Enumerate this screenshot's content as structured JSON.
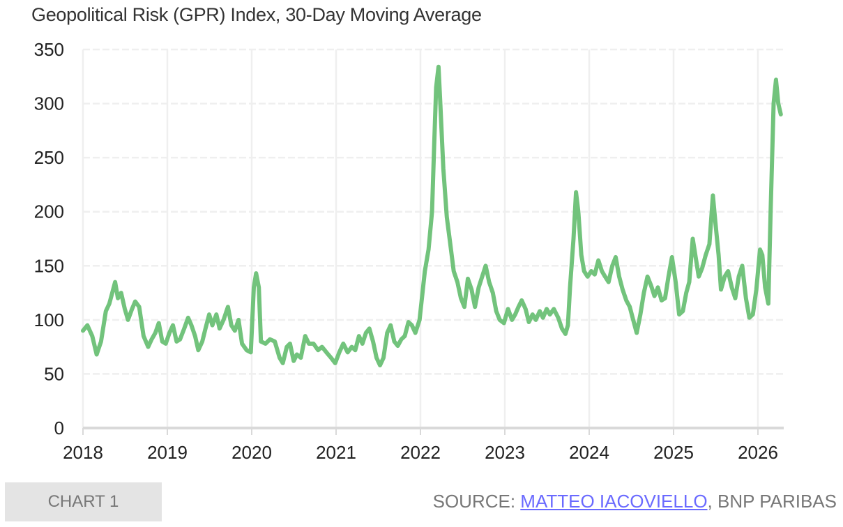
{
  "chart_data": {
    "type": "line",
    "title": "Geopolitical Risk (GPR) Index, 30-Day Moving Average",
    "xlabel": "",
    "ylabel": "",
    "ylim": [
      0,
      350
    ],
    "yticks": [
      "0",
      "50",
      "100",
      "150",
      "200",
      "250",
      "300",
      "350"
    ],
    "xticks": [
      "2018",
      "2019",
      "2020",
      "2021",
      "2022",
      "2023",
      "2024",
      "2025",
      "2026"
    ],
    "xlim": [
      "2018-01-01",
      "2026-04-15"
    ],
    "grid": true,
    "line_color": "#72c37c",
    "series": [
      {
        "points": [
          [
            "2018-01-01",
            90
          ],
          [
            "2018-01-20",
            95
          ],
          [
            "2018-02-10",
            85
          ],
          [
            "2018-03-01",
            68
          ],
          [
            "2018-03-20",
            80
          ],
          [
            "2018-04-10",
            108
          ],
          [
            "2018-04-25",
            115
          ],
          [
            "2018-05-10",
            127
          ],
          [
            "2018-05-20",
            135
          ],
          [
            "2018-06-01",
            120
          ],
          [
            "2018-06-15",
            125
          ],
          [
            "2018-07-01",
            110
          ],
          [
            "2018-07-15",
            100
          ],
          [
            "2018-08-01",
            110
          ],
          [
            "2018-08-15",
            117
          ],
          [
            "2018-09-01",
            112
          ],
          [
            "2018-09-20",
            85
          ],
          [
            "2018-10-10",
            75
          ],
          [
            "2018-10-25",
            82
          ],
          [
            "2018-11-10",
            88
          ],
          [
            "2018-11-25",
            97
          ],
          [
            "2018-12-10",
            80
          ],
          [
            "2018-12-25",
            78
          ],
          [
            "2019-01-10",
            88
          ],
          [
            "2019-01-25",
            95
          ],
          [
            "2019-02-10",
            80
          ],
          [
            "2019-02-25",
            82
          ],
          [
            "2019-03-15",
            92
          ],
          [
            "2019-04-01",
            102
          ],
          [
            "2019-04-15",
            95
          ],
          [
            "2019-05-01",
            85
          ],
          [
            "2019-05-15",
            72
          ],
          [
            "2019-06-01",
            80
          ],
          [
            "2019-06-15",
            92
          ],
          [
            "2019-07-01",
            105
          ],
          [
            "2019-07-15",
            95
          ],
          [
            "2019-08-01",
            105
          ],
          [
            "2019-08-15",
            92
          ],
          [
            "2019-09-01",
            100
          ],
          [
            "2019-09-20",
            112
          ],
          [
            "2019-10-05",
            95
          ],
          [
            "2019-10-20",
            90
          ],
          [
            "2019-11-05",
            100
          ],
          [
            "2019-11-20",
            78
          ],
          [
            "2019-12-10",
            72
          ],
          [
            "2019-12-28",
            70
          ],
          [
            "2020-01-10",
            130
          ],
          [
            "2020-01-20",
            143
          ],
          [
            "2020-02-01",
            130
          ],
          [
            "2020-02-10",
            80
          ],
          [
            "2020-03-01",
            78
          ],
          [
            "2020-03-20",
            82
          ],
          [
            "2020-04-10",
            80
          ],
          [
            "2020-05-01",
            65
          ],
          [
            "2020-05-15",
            60
          ],
          [
            "2020-06-01",
            75
          ],
          [
            "2020-06-15",
            78
          ],
          [
            "2020-07-01",
            62
          ],
          [
            "2020-07-15",
            68
          ],
          [
            "2020-08-01",
            65
          ],
          [
            "2020-08-20",
            85
          ],
          [
            "2020-09-05",
            78
          ],
          [
            "2020-09-25",
            78
          ],
          [
            "2020-10-15",
            72
          ],
          [
            "2020-11-01",
            75
          ],
          [
            "2020-11-20",
            70
          ],
          [
            "2020-12-10",
            65
          ],
          [
            "2020-12-28",
            60
          ],
          [
            "2021-01-15",
            70
          ],
          [
            "2021-02-01",
            78
          ],
          [
            "2021-02-20",
            70
          ],
          [
            "2021-03-10",
            75
          ],
          [
            "2021-03-25",
            72
          ],
          [
            "2021-04-10",
            85
          ],
          [
            "2021-04-25",
            78
          ],
          [
            "2021-05-10",
            88
          ],
          [
            "2021-05-25",
            92
          ],
          [
            "2021-06-10",
            80
          ],
          [
            "2021-06-25",
            65
          ],
          [
            "2021-07-10",
            58
          ],
          [
            "2021-07-25",
            65
          ],
          [
            "2021-08-10",
            88
          ],
          [
            "2021-08-25",
            95
          ],
          [
            "2021-09-10",
            80
          ],
          [
            "2021-09-25",
            76
          ],
          [
            "2021-10-10",
            82
          ],
          [
            "2021-10-25",
            85
          ],
          [
            "2021-11-10",
            98
          ],
          [
            "2021-11-25",
            95
          ],
          [
            "2021-12-10",
            88
          ],
          [
            "2021-12-28",
            100
          ],
          [
            "2022-01-20",
            145
          ],
          [
            "2022-02-05",
            165
          ],
          [
            "2022-02-20",
            200
          ],
          [
            "2022-03-01",
            260
          ],
          [
            "2022-03-10",
            315
          ],
          [
            "2022-03-20",
            334
          ],
          [
            "2022-03-28",
            300
          ],
          [
            "2022-04-10",
            240
          ],
          [
            "2022-04-25",
            195
          ],
          [
            "2022-05-10",
            170
          ],
          [
            "2022-05-25",
            145
          ],
          [
            "2022-06-10",
            135
          ],
          [
            "2022-06-25",
            120
          ],
          [
            "2022-07-10",
            112
          ],
          [
            "2022-07-25",
            138
          ],
          [
            "2022-08-10",
            128
          ],
          [
            "2022-08-25",
            112
          ],
          [
            "2022-09-10",
            130
          ],
          [
            "2022-09-25",
            140
          ],
          [
            "2022-10-10",
            150
          ],
          [
            "2022-10-25",
            135
          ],
          [
            "2022-11-10",
            125
          ],
          [
            "2022-11-25",
            108
          ],
          [
            "2022-12-10",
            100
          ],
          [
            "2022-12-28",
            97
          ],
          [
            "2023-01-15",
            110
          ],
          [
            "2023-02-01",
            100
          ],
          [
            "2023-02-15",
            105
          ],
          [
            "2023-03-01",
            112
          ],
          [
            "2023-03-15",
            118
          ],
          [
            "2023-04-01",
            110
          ],
          [
            "2023-04-15",
            98
          ],
          [
            "2023-05-01",
            105
          ],
          [
            "2023-05-15",
            100
          ],
          [
            "2023-06-01",
            108
          ],
          [
            "2023-06-15",
            102
          ],
          [
            "2023-07-01",
            110
          ],
          [
            "2023-07-15",
            105
          ],
          [
            "2023-08-01",
            110
          ],
          [
            "2023-08-20",
            102
          ],
          [
            "2023-09-05",
            92
          ],
          [
            "2023-09-20",
            87
          ],
          [
            "2023-10-01",
            95
          ],
          [
            "2023-10-10",
            130
          ],
          [
            "2023-10-25",
            175
          ],
          [
            "2023-11-05",
            218
          ],
          [
            "2023-11-15",
            200
          ],
          [
            "2023-11-28",
            160
          ],
          [
            "2023-12-10",
            145
          ],
          [
            "2023-12-25",
            140
          ],
          [
            "2024-01-10",
            145
          ],
          [
            "2024-01-25",
            142
          ],
          [
            "2024-02-10",
            155
          ],
          [
            "2024-02-25",
            145
          ],
          [
            "2024-03-10",
            140
          ],
          [
            "2024-03-25",
            135
          ],
          [
            "2024-04-10",
            150
          ],
          [
            "2024-04-25",
            158
          ],
          [
            "2024-05-10",
            140
          ],
          [
            "2024-05-25",
            128
          ],
          [
            "2024-06-10",
            118
          ],
          [
            "2024-06-25",
            112
          ],
          [
            "2024-07-10",
            100
          ],
          [
            "2024-07-25",
            88
          ],
          [
            "2024-08-10",
            105
          ],
          [
            "2024-08-25",
            125
          ],
          [
            "2024-09-10",
            140
          ],
          [
            "2024-09-25",
            132
          ],
          [
            "2024-10-10",
            122
          ],
          [
            "2024-10-25",
            130
          ],
          [
            "2024-11-10",
            118
          ],
          [
            "2024-11-25",
            120
          ],
          [
            "2024-12-10",
            140
          ],
          [
            "2024-12-25",
            158
          ],
          [
            "2025-01-10",
            135
          ],
          [
            "2025-01-25",
            105
          ],
          [
            "2025-02-10",
            108
          ],
          [
            "2025-02-25",
            125
          ],
          [
            "2025-03-10",
            135
          ],
          [
            "2025-03-25",
            175
          ],
          [
            "2025-04-05",
            160
          ],
          [
            "2025-04-20",
            140
          ],
          [
            "2025-05-05",
            148
          ],
          [
            "2025-05-20",
            160
          ],
          [
            "2025-06-05",
            170
          ],
          [
            "2025-06-20",
            215
          ],
          [
            "2025-07-01",
            190
          ],
          [
            "2025-07-15",
            160
          ],
          [
            "2025-07-25",
            128
          ],
          [
            "2025-08-10",
            140
          ],
          [
            "2025-08-25",
            145
          ],
          [
            "2025-09-10",
            130
          ],
          [
            "2025-09-25",
            120
          ],
          [
            "2025-10-10",
            140
          ],
          [
            "2025-10-25",
            150
          ],
          [
            "2025-11-10",
            120
          ],
          [
            "2025-11-25",
            102
          ],
          [
            "2025-12-10",
            105
          ],
          [
            "2025-12-25",
            128
          ],
          [
            "2026-01-10",
            165
          ],
          [
            "2026-01-20",
            160
          ],
          [
            "2026-02-01",
            130
          ],
          [
            "2026-02-15",
            115
          ],
          [
            "2026-02-25",
            200
          ],
          [
            "2026-03-10",
            300
          ],
          [
            "2026-03-20",
            322
          ],
          [
            "2026-03-30",
            300
          ],
          [
            "2026-04-10",
            290
          ]
        ]
      }
    ]
  },
  "footer": {
    "chart_label": "CHART 1",
    "source_prefix": "SOURCE: ",
    "source_link": "MATTEO IACOVIELLO",
    "source_suffix": ", BNP PARIBAS",
    "link_color": "#6a6aff"
  }
}
